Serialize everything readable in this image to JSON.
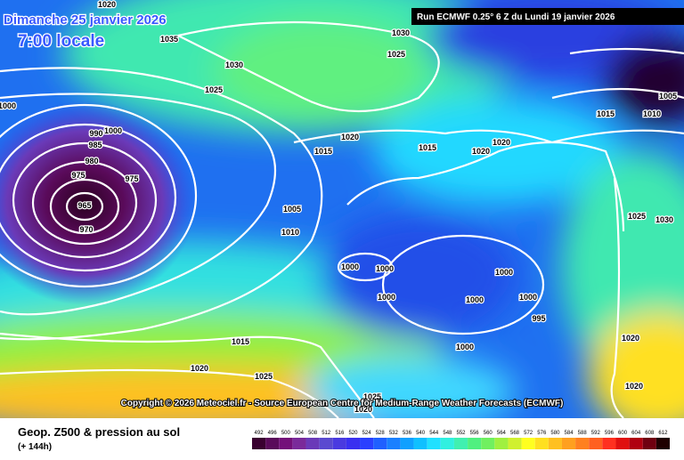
{
  "header": {
    "date": "Dimanche 25 janvier 2026",
    "time": "7:00 locale",
    "run": "Run ECMWF 0.25° 6 Z du Lundi 19 janvier 2026"
  },
  "map": {
    "copyright": "Copyright © 2026 Meteociel.fr - Source European Centre for Medium-Range Weather Forecasts (ECMWF)",
    "isobar_labels": [
      "1020",
      "1035",
      "1030",
      "1025",
      "1030",
      "1025",
      "1000",
      "1000",
      "990",
      "985",
      "980",
      "975",
      "975",
      "965",
      "970",
      "1020",
      "1015",
      "1015",
      "1020",
      "1020",
      "1015",
      "1010",
      "1005",
      "1005",
      "1010",
      "1000",
      "1000",
      "1000",
      "1000",
      "1000",
      "1000",
      "995",
      "1000",
      "1025",
      "1030",
      "1015",
      "1020",
      "1025",
      "1020",
      "1020",
      "1025",
      "1020"
    ]
  },
  "footer": {
    "title": "Geop. Z500 & pression au sol",
    "lead": "(+ 144h)"
  },
  "legend": {
    "values": [
      492,
      496,
      500,
      504,
      508,
      512,
      516,
      520,
      524,
      528,
      532,
      536,
      540,
      544,
      548,
      552,
      556,
      560,
      564,
      568,
      572,
      576,
      580,
      584,
      588,
      592,
      596,
      600,
      604,
      608,
      612
    ],
    "colors": [
      "#3a0030",
      "#5a0a5a",
      "#74107a",
      "#7a2a9a",
      "#6a3ab8",
      "#5a4ad0",
      "#4a3ae0",
      "#3a30f0",
      "#2a40ff",
      "#2060ff",
      "#1a80ff",
      "#10a0ff",
      "#10c0ff",
      "#20e0ff",
      "#30f0e0",
      "#40f0b0",
      "#50f080",
      "#70f060",
      "#a0f040",
      "#d0f030",
      "#ffff20",
      "#ffe020",
      "#ffc020",
      "#ffa020",
      "#ff8020",
      "#ff6020",
      "#ff3020",
      "#e01010",
      "#b00010",
      "#700010",
      "#200000"
    ]
  }
}
